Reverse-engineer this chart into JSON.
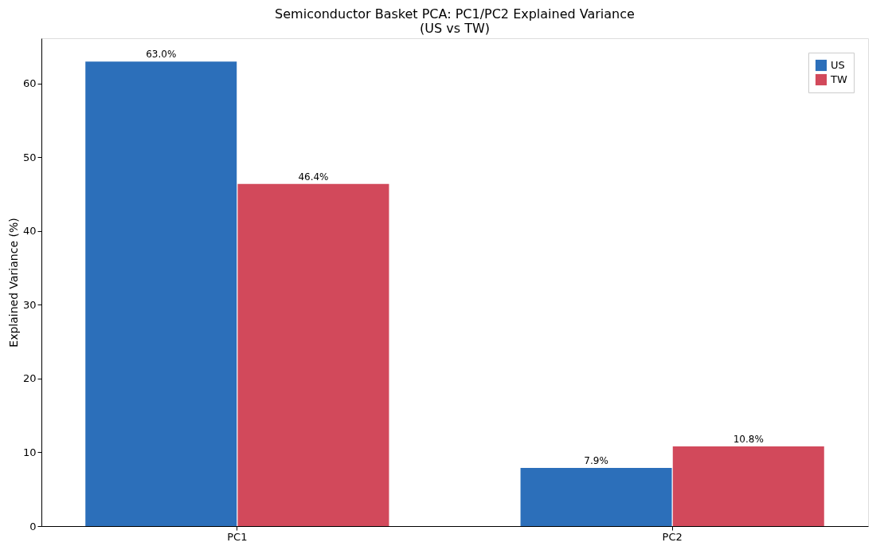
{
  "chart_data": {
    "type": "bar",
    "title": [
      "Semiconductor Basket PCA: PC1/PC2 Explained Variance",
      "(US vs TW)"
    ],
    "ylabel": "Explained Variance (%)",
    "categories": [
      "PC1",
      "PC2"
    ],
    "series": [
      {
        "name": "US",
        "color": "#2c6fba",
        "values": [
          63.0,
          7.9
        ],
        "value_labels": [
          "63.0%",
          "7.9%"
        ]
      },
      {
        "name": "TW",
        "color": "#d2495b",
        "values": [
          46.4,
          10.8
        ],
        "value_labels": [
          "46.4%",
          "10.8%"
        ]
      }
    ],
    "ylim": [
      0,
      66.15
    ],
    "yticks": [
      0,
      10,
      20,
      30,
      40,
      50,
      60
    ],
    "grid": false,
    "legend": "top right"
  }
}
